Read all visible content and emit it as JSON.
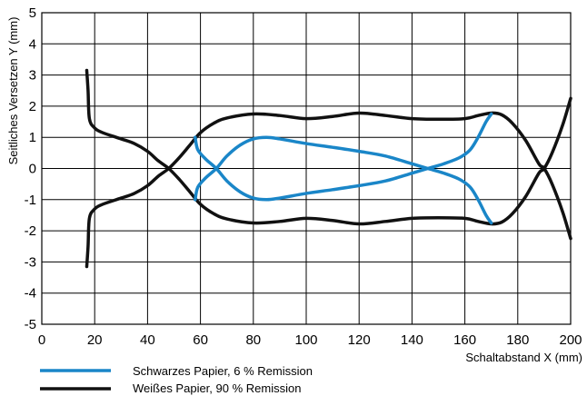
{
  "chart_data": {
    "type": "line",
    "xlabel": "Schaltabstand X (mm)",
    "ylabel": "Seitliches Versetzen Y (mm)",
    "xlim": [
      0,
      200
    ],
    "ylim": [
      -5,
      5
    ],
    "x_ticks": [
      0,
      20,
      40,
      60,
      80,
      100,
      120,
      140,
      160,
      180,
      200
    ],
    "y_ticks": [
      5,
      4,
      3,
      2,
      1,
      0,
      -1,
      -2,
      -3,
      -4,
      -5
    ],
    "grid": true,
    "legend_position": "bottom",
    "series": [
      {
        "name": "Schwarzes Papier, 6 % Remission",
        "color": "#1a86c8",
        "curves": [
          [
            [
              58,
              1
            ],
            [
              59,
              0.6
            ],
            [
              62,
              0.3
            ],
            [
              66,
              0
            ],
            [
              70,
              -0.4
            ],
            [
              75,
              -0.75
            ],
            [
              80,
              -0.95
            ],
            [
              85,
              -1
            ],
            [
              90,
              -0.95
            ],
            [
              100,
              -0.8
            ],
            [
              110,
              -0.68
            ],
            [
              120,
              -0.55
            ],
            [
              130,
              -0.4
            ],
            [
              140,
              -0.15
            ],
            [
              146,
              0
            ],
            [
              152,
              0.15
            ],
            [
              158,
              0.35
            ],
            [
              162,
              0.6
            ],
            [
              165,
              1
            ],
            [
              168,
              1.5
            ],
            [
              170,
              1.75
            ]
          ],
          [
            [
              58,
              -1
            ],
            [
              59,
              -0.6
            ],
            [
              62,
              -0.3
            ],
            [
              66,
              0
            ],
            [
              70,
              0.4
            ],
            [
              75,
              0.75
            ],
            [
              80,
              0.95
            ],
            [
              85,
              1
            ],
            [
              90,
              0.95
            ],
            [
              100,
              0.8
            ],
            [
              110,
              0.68
            ],
            [
              120,
              0.55
            ],
            [
              130,
              0.4
            ],
            [
              140,
              0.15
            ],
            [
              146,
              0
            ],
            [
              152,
              -0.15
            ],
            [
              158,
              -0.35
            ],
            [
              162,
              -0.6
            ],
            [
              165,
              -1
            ],
            [
              168,
              -1.5
            ],
            [
              170,
              -1.75
            ]
          ]
        ]
      },
      {
        "name": "Weißes Papier, 90 % Remission",
        "color": "#111111",
        "curves": [
          [
            [
              17,
              3.15
            ],
            [
              17.5,
              2.5
            ],
            [
              18,
              1.6
            ],
            [
              20,
              1.3
            ],
            [
              23,
              1.15
            ],
            [
              30,
              0.95
            ],
            [
              35,
              0.8
            ],
            [
              40,
              0.55
            ],
            [
              44,
              0.25
            ],
            [
              48,
              0
            ],
            [
              52,
              -0.35
            ],
            [
              56,
              -0.75
            ],
            [
              60,
              -1.15
            ],
            [
              65,
              -1.45
            ],
            [
              70,
              -1.62
            ],
            [
              80,
              -1.75
            ],
            [
              90,
              -1.7
            ],
            [
              100,
              -1.6
            ],
            [
              110,
              -1.67
            ],
            [
              120,
              -1.78
            ],
            [
              130,
              -1.7
            ],
            [
              140,
              -1.6
            ],
            [
              150,
              -1.58
            ],
            [
              160,
              -1.6
            ],
            [
              165,
              -1.7
            ],
            [
              170,
              -1.78
            ],
            [
              174,
              -1.72
            ],
            [
              178,
              -1.45
            ],
            [
              183,
              -0.9
            ],
            [
              188,
              -0.15
            ],
            [
              190,
              0
            ],
            [
              193,
              0.5
            ],
            [
              197,
              1.4
            ],
            [
              200,
              2.25
            ]
          ],
          [
            [
              17,
              -3.15
            ],
            [
              17.5,
              -2.5
            ],
            [
              18,
              -1.6
            ],
            [
              20,
              -1.3
            ],
            [
              23,
              -1.15
            ],
            [
              30,
              -0.95
            ],
            [
              35,
              -0.8
            ],
            [
              40,
              -0.55
            ],
            [
              44,
              -0.25
            ],
            [
              48,
              0
            ],
            [
              52,
              0.35
            ],
            [
              56,
              0.75
            ],
            [
              60,
              1.15
            ],
            [
              65,
              1.45
            ],
            [
              70,
              1.62
            ],
            [
              80,
              1.75
            ],
            [
              90,
              1.7
            ],
            [
              100,
              1.6
            ],
            [
              110,
              1.67
            ],
            [
              120,
              1.78
            ],
            [
              130,
              1.7
            ],
            [
              140,
              1.6
            ],
            [
              150,
              1.58
            ],
            [
              160,
              1.6
            ],
            [
              165,
              1.7
            ],
            [
              170,
              1.78
            ],
            [
              174,
              1.72
            ],
            [
              178,
              1.45
            ],
            [
              183,
              0.9
            ],
            [
              188,
              0.15
            ],
            [
              190,
              0
            ],
            [
              193,
              -0.5
            ],
            [
              197,
              -1.4
            ],
            [
              200,
              -2.25
            ]
          ]
        ]
      }
    ]
  }
}
